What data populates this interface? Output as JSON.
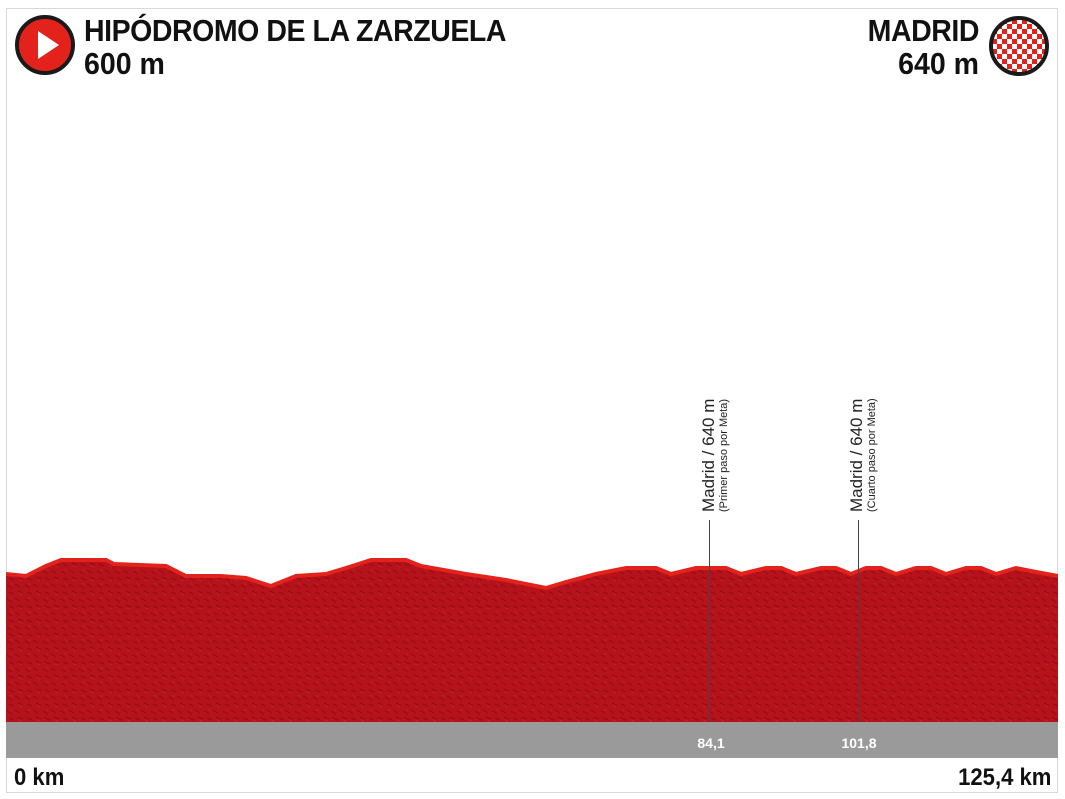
{
  "start": {
    "name": "HIPÓDROMO DE LA ZARZUELA",
    "altitude": "600 m",
    "icon": "start-play-icon",
    "icon_color": "#e3231b"
  },
  "finish": {
    "name": "MADRID",
    "altitude": "640 m",
    "icon": "checkered-flag-icon",
    "icon_color": "#e3231b"
  },
  "profile": {
    "fill_color": "#b5121b",
    "top_color": "#e3231b",
    "band_color": "#9a9a9a",
    "distance_start_label": "0 km",
    "distance_end_label": "125,4 km",
    "passages": [
      {
        "km_label": "84,1",
        "title": "Madrid / 640 m",
        "subtitle": "(Primer paso por Meta)"
      },
      {
        "km_label": "101,8",
        "title": "Madrid / 640 m",
        "subtitle": "(Cuarto paso por Meta)"
      }
    ]
  }
}
